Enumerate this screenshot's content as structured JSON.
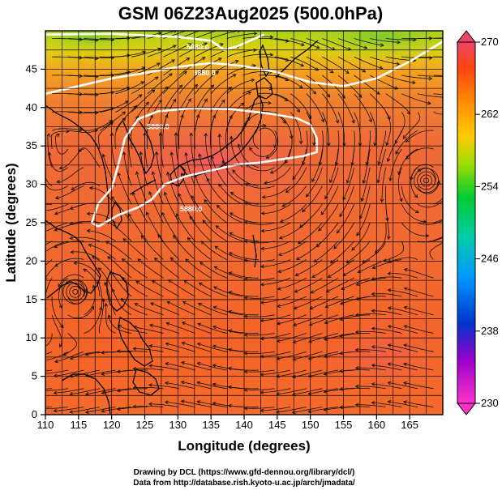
{
  "chart_data": {
    "type": "heatmap",
    "title": "GSM 06Z23Aug2025 (500.0hPa)",
    "xlabel": "Longitude (degrees)",
    "ylabel": "Latitude  (degrees)",
    "xlim": [
      110,
      170
    ],
    "ylim": [
      0,
      50
    ],
    "xticks": [
      110,
      115,
      120,
      125,
      130,
      135,
      140,
      145,
      150,
      155,
      160,
      165
    ],
    "yticks": [
      0,
      5,
      10,
      15,
      20,
      25,
      30,
      35,
      40,
      45
    ],
    "colorbar": {
      "min": 230,
      "max": 270,
      "ticks": [
        270,
        262,
        254,
        246,
        238,
        230
      ]
    },
    "contour_label": "5880.0",
    "contours": [
      {
        "name": "5880-north",
        "label": "5880.0",
        "points": [
          [
            110,
            41.8
          ],
          [
            115,
            42.8
          ],
          [
            120,
            43.8
          ],
          [
            125,
            44.5
          ],
          [
            130,
            45.3
          ],
          [
            135,
            45.8
          ],
          [
            140,
            45.4
          ],
          [
            145,
            44.6
          ],
          [
            150,
            43.3
          ],
          [
            155,
            42.8
          ],
          [
            160,
            43.8
          ],
          [
            165,
            46.0
          ],
          [
            170,
            48.6
          ]
        ]
      },
      {
        "name": "5880-subtropical-high",
        "label": "5880.0",
        "points": [
          [
            118,
            24.5
          ],
          [
            121,
            26.0
          ],
          [
            124,
            27.0
          ],
          [
            126,
            28.0
          ],
          [
            128,
            30.0
          ],
          [
            131,
            31.0
          ],
          [
            135,
            31.8
          ],
          [
            139,
            32.6
          ],
          [
            142,
            32.8
          ],
          [
            146,
            33.3
          ],
          [
            149,
            33.7
          ],
          [
            151,
            34.2
          ],
          [
            151,
            36.0
          ],
          [
            150,
            37.8
          ],
          [
            148,
            38.6
          ],
          [
            144,
            39.2
          ],
          [
            138,
            39.8
          ],
          [
            132,
            39.9
          ],
          [
            127,
            39.5
          ],
          [
            124,
            38.5
          ],
          [
            122,
            36.0
          ],
          [
            121,
            32.5
          ],
          [
            120,
            29.5
          ],
          [
            118,
            27.5
          ],
          [
            117,
            25.0
          ],
          [
            118,
            24.5
          ]
        ]
      },
      {
        "name": "5880-far-north",
        "label": "5880.0",
        "points": [
          [
            110,
            49.5
          ],
          [
            120,
            49.6
          ],
          [
            130,
            49.2
          ],
          [
            135,
            48.7
          ],
          [
            137,
            47.5
          ],
          [
            139,
            48.0
          ],
          [
            143,
            49.5
          ]
        ]
      }
    ],
    "labels_on_contours": [
      [
        133,
        47.5
      ],
      [
        134,
        44.2
      ],
      [
        127,
        37.2
      ],
      [
        132,
        26.5
      ]
    ],
    "features": [
      {
        "name": "typhoon-west",
        "lon": 114.5,
        "lat": 16.0
      },
      {
        "name": "cyclone-east",
        "lon": 167.5,
        "lat": 30.5
      },
      {
        "name": "circulation-center-japan",
        "lon": 143.0,
        "lat": 35.8
      }
    ]
  },
  "credits": {
    "line1": "Drawing by DCL (https://www.gfd-dennou.org/library/dcl/)",
    "line2": "Data from http://database.rish.kyoto-u.ac.jp/arch/jmadata/"
  },
  "colors": {
    "background": "#ffffff",
    "frame": "#000000",
    "contour": "#ffffff",
    "streamline": "#111111",
    "coast": "#000000"
  }
}
